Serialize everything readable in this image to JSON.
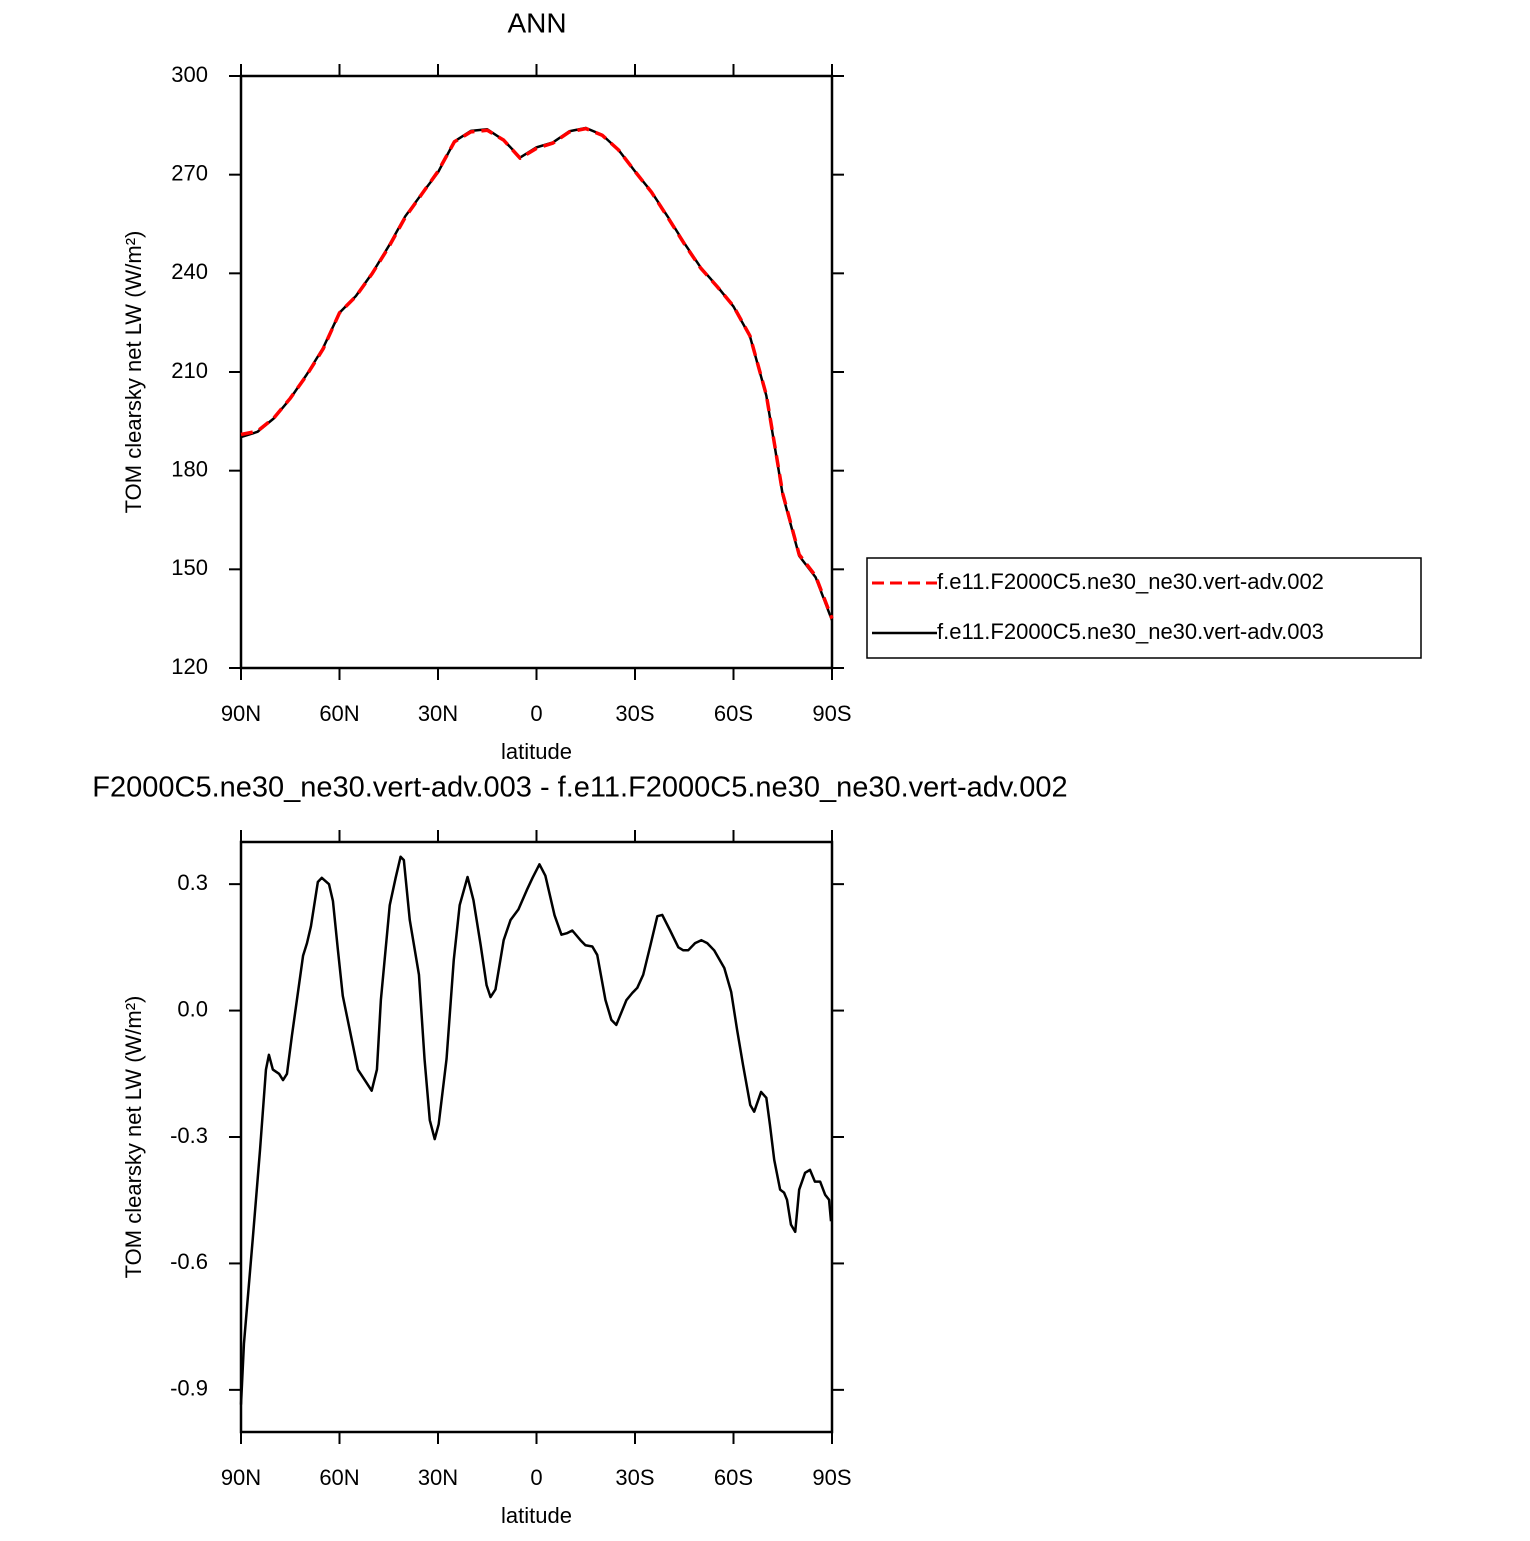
{
  "chart_data": [
    {
      "type": "line",
      "title": "ANN",
      "xlabel": "latitude",
      "ylabel": "TOM clearsky net LW (W/m²)",
      "x": [
        90,
        85,
        80,
        75,
        70,
        65,
        60,
        55,
        50,
        45,
        40,
        35,
        30,
        25,
        20,
        15,
        10,
        5,
        0,
        -5,
        -10,
        -15,
        -20,
        -25,
        -30,
        -35,
        -40,
        -45,
        -50,
        -55,
        -60,
        -65,
        -70,
        -75,
        -80,
        -85,
        -90
      ],
      "series": [
        {
          "name": "f.e11.F2000C5.ne30_ne30.vert-adv.002",
          "color": "#ff0000",
          "dash": true,
          "values": [
            191,
            192,
            196,
            202,
            209,
            217,
            228,
            233,
            240,
            248,
            257,
            264,
            271,
            280,
            283,
            283.5,
            280.5,
            275,
            278,
            279.6,
            283,
            284,
            282,
            277.5,
            271,
            264.7,
            257,
            249,
            241.6,
            236,
            230,
            221,
            203,
            173,
            154.5,
            148,
            135
          ]
        },
        {
          "name": "f.e11.F2000C5.ne30_ne30.vert-adv.003",
          "color": "#000000",
          "dash": false,
          "values": [
            190.2,
            191.8,
            195.9,
            201.9,
            209.2,
            217.3,
            228,
            233.1,
            240.1,
            248.3,
            257.3,
            264.1,
            270.7,
            280.1,
            283.3,
            283.8,
            280.5,
            275.2,
            278.3,
            279.8,
            283.2,
            284.2,
            282.1,
            277.5,
            271,
            264.8,
            257.2,
            249.2,
            241.8,
            236.1,
            229.9,
            220.9,
            202.8,
            172.6,
            154.1,
            147.6,
            134.5
          ]
        }
      ],
      "xlim": [
        90,
        -90
      ],
      "xticks": [
        {
          "value": 90,
          "label": "90N"
        },
        {
          "value": 60,
          "label": "60N"
        },
        {
          "value": 30,
          "label": "30N"
        },
        0,
        {
          "value": -30,
          "label": "30S"
        },
        {
          "value": -60,
          "label": "60S"
        },
        {
          "value": -90,
          "label": "90S"
        }
      ],
      "ylim": [
        120,
        300
      ],
      "yticks": [
        120,
        150,
        180,
        210,
        240,
        270,
        300
      ],
      "legend": "right"
    },
    {
      "type": "line",
      "title": "F2000C5.ne30_ne30.vert-adv.003 - f.e11.F2000C5.ne30_ne30.vert-adv.002",
      "xlabel": "latitude",
      "ylabel": "TOM clearsky net LW (W/m²)",
      "x": [
        90,
        89.1,
        86.4,
        84.2,
        82.4,
        81.5,
        80.3,
        78.4,
        77.2,
        76,
        74.5,
        71.1,
        69.9,
        68.7,
        66.6,
        65.4,
        63.2,
        62,
        60.5,
        59,
        56.9,
        54.4,
        52.3,
        50.2,
        48.6,
        47.4,
        44.7,
        42.9,
        41.4,
        40.4,
        38.6,
        35.8,
        34.1,
        32.5,
        31,
        29.8,
        27.4,
        25.2,
        23.4,
        21,
        19.2,
        17,
        15.2,
        14,
        12.5,
        10,
        7.9,
        5.5,
        3,
        1.2,
        -0.9,
        -2.7,
        -5.5,
        -7.6,
        -9.4,
        -10.9,
        -13.4,
        -14.9,
        -17,
        -18.5,
        -21,
        -22.8,
        -24.3,
        -27.4,
        -29.2,
        -30.7,
        -32.5,
        -34.7,
        -36.8,
        -38.3,
        -40.7,
        -43.2,
        -44.7,
        -46.2,
        -48.3,
        -50.2,
        -52,
        -54.1,
        -57.2,
        -59.3,
        -61.1,
        -62.9,
        -65.1,
        -66.3,
        -68.4,
        -70,
        -71.1,
        -72.4,
        -74.2,
        -75.4,
        -76.3,
        -77.5,
        -78.8,
        -80,
        -81.8,
        -83.3,
        -84.8,
        -86.4,
        -87.9,
        -89.1,
        -89.7
      ],
      "values": [
        -0.935,
        -0.79,
        -0.54,
        -0.33,
        -0.14,
        -0.105,
        -0.14,
        -0.15,
        -0.165,
        -0.15,
        -0.06,
        0.13,
        0.16,
        0.2,
        0.305,
        0.315,
        0.3,
        0.26,
        0.145,
        0.035,
        -0.045,
        -0.14,
        -0.165,
        -0.19,
        -0.14,
        0.025,
        0.25,
        0.315,
        0.365,
        0.357,
        0.215,
        0.085,
        -0.115,
        -0.26,
        -0.305,
        -0.27,
        -0.115,
        0.12,
        0.25,
        0.317,
        0.262,
        0.155,
        0.06,
        0.032,
        0.05,
        0.167,
        0.215,
        0.24,
        0.285,
        0.315,
        0.347,
        0.32,
        0.226,
        0.18,
        0.184,
        0.19,
        0.167,
        0.155,
        0.152,
        0.132,
        0.025,
        -0.022,
        -0.034,
        0.025,
        0.042,
        0.054,
        0.085,
        0.155,
        0.224,
        0.227,
        0.19,
        0.15,
        0.143,
        0.143,
        0.16,
        0.167,
        0.16,
        0.143,
        0.101,
        0.044,
        -0.046,
        -0.129,
        -0.224,
        -0.24,
        -0.193,
        -0.207,
        -0.271,
        -0.354,
        -0.425,
        -0.432,
        -0.449,
        -0.508,
        -0.525,
        -0.425,
        -0.385,
        -0.378,
        -0.406,
        -0.406,
        -0.437,
        -0.449,
        -0.5
      ],
      "color": "#000000",
      "xlim": [
        90,
        -90
      ],
      "xticks": [
        {
          "value": 90,
          "label": "90N"
        },
        {
          "value": 60,
          "label": "60N"
        },
        {
          "value": 30,
          "label": "30N"
        },
        0,
        {
          "value": -30,
          "label": "30S"
        },
        {
          "value": -60,
          "label": "60S"
        },
        {
          "value": -90,
          "label": "90S"
        }
      ],
      "ylim": [
        -1.0,
        0.4
      ],
      "yticks": [
        -0.9,
        -0.6,
        -0.3,
        {
          "value": 0,
          "label": "0.0"
        },
        0.3
      ]
    }
  ]
}
